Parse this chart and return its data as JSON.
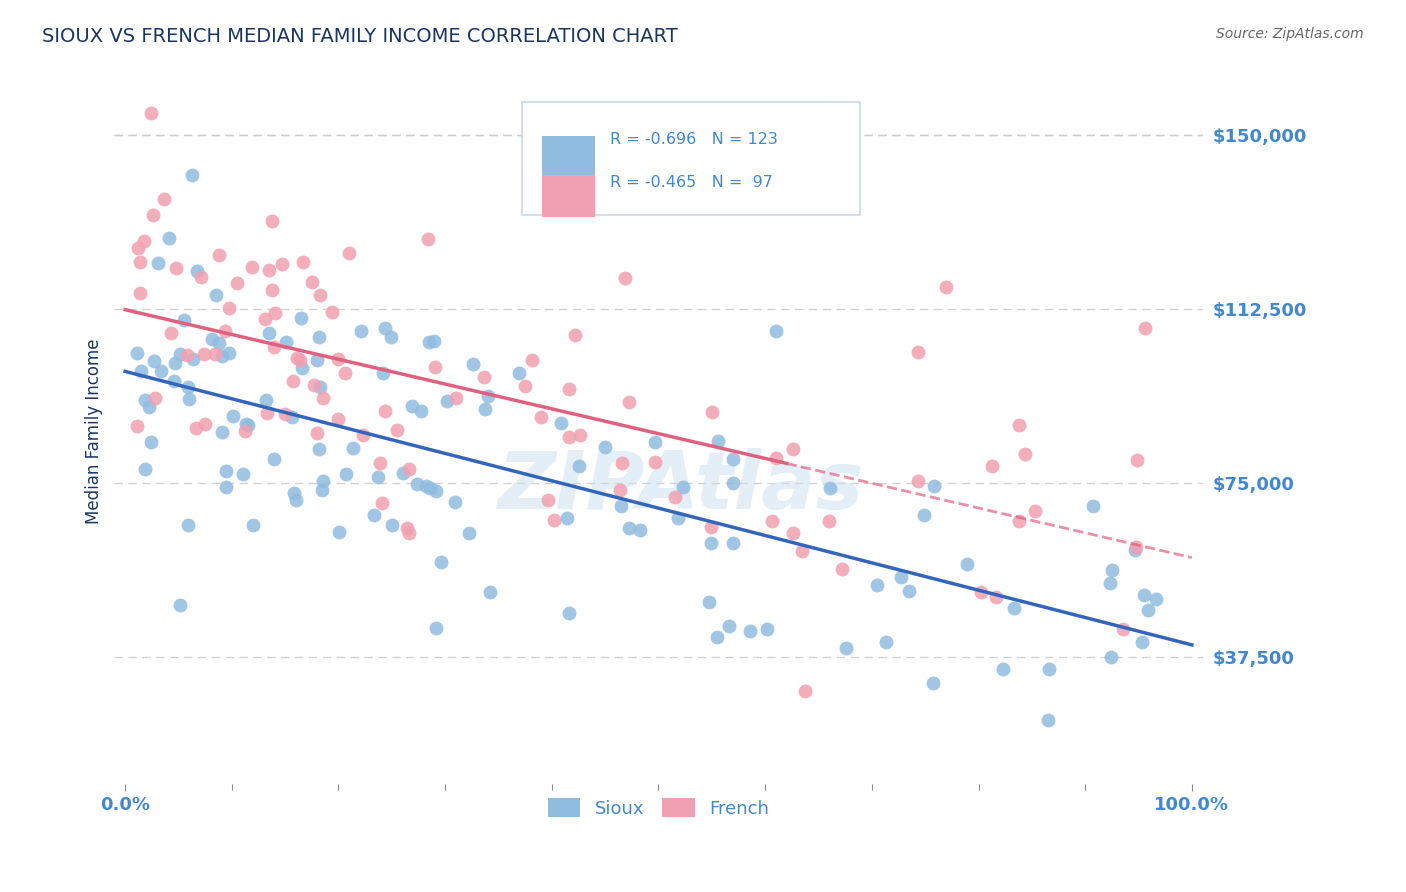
{
  "title": "SIOUX VS FRENCH MEDIAN FAMILY INCOME CORRELATION CHART",
  "source": "Source: ZipAtlas.com",
  "ylabel": "Median Family Income",
  "xlim": [
    -1,
    101
  ],
  "ylim": [
    10000,
    162500
  ],
  "yticks": [
    37500,
    75000,
    112500,
    150000
  ],
  "ytick_labels": [
    "$37,500",
    "$75,000",
    "$112,500",
    "$150,000"
  ],
  "xtick_labels": [
    "0.0%",
    "100.0%"
  ],
  "sioux_color": "#90bce0",
  "french_color": "#f0a0b0",
  "sioux_line_color": "#3366bb",
  "french_line_color": "#e06080",
  "background_color": "#ffffff",
  "grid_color": "#cccccc",
  "title_color": "#1a3560",
  "axis_label_color": "#1a3560",
  "tick_label_color": "#4488cc",
  "sioux_intercept": 100000,
  "sioux_slope": -680,
  "french_intercept": 110000,
  "french_slope": -520,
  "french_dash_start": 62
}
